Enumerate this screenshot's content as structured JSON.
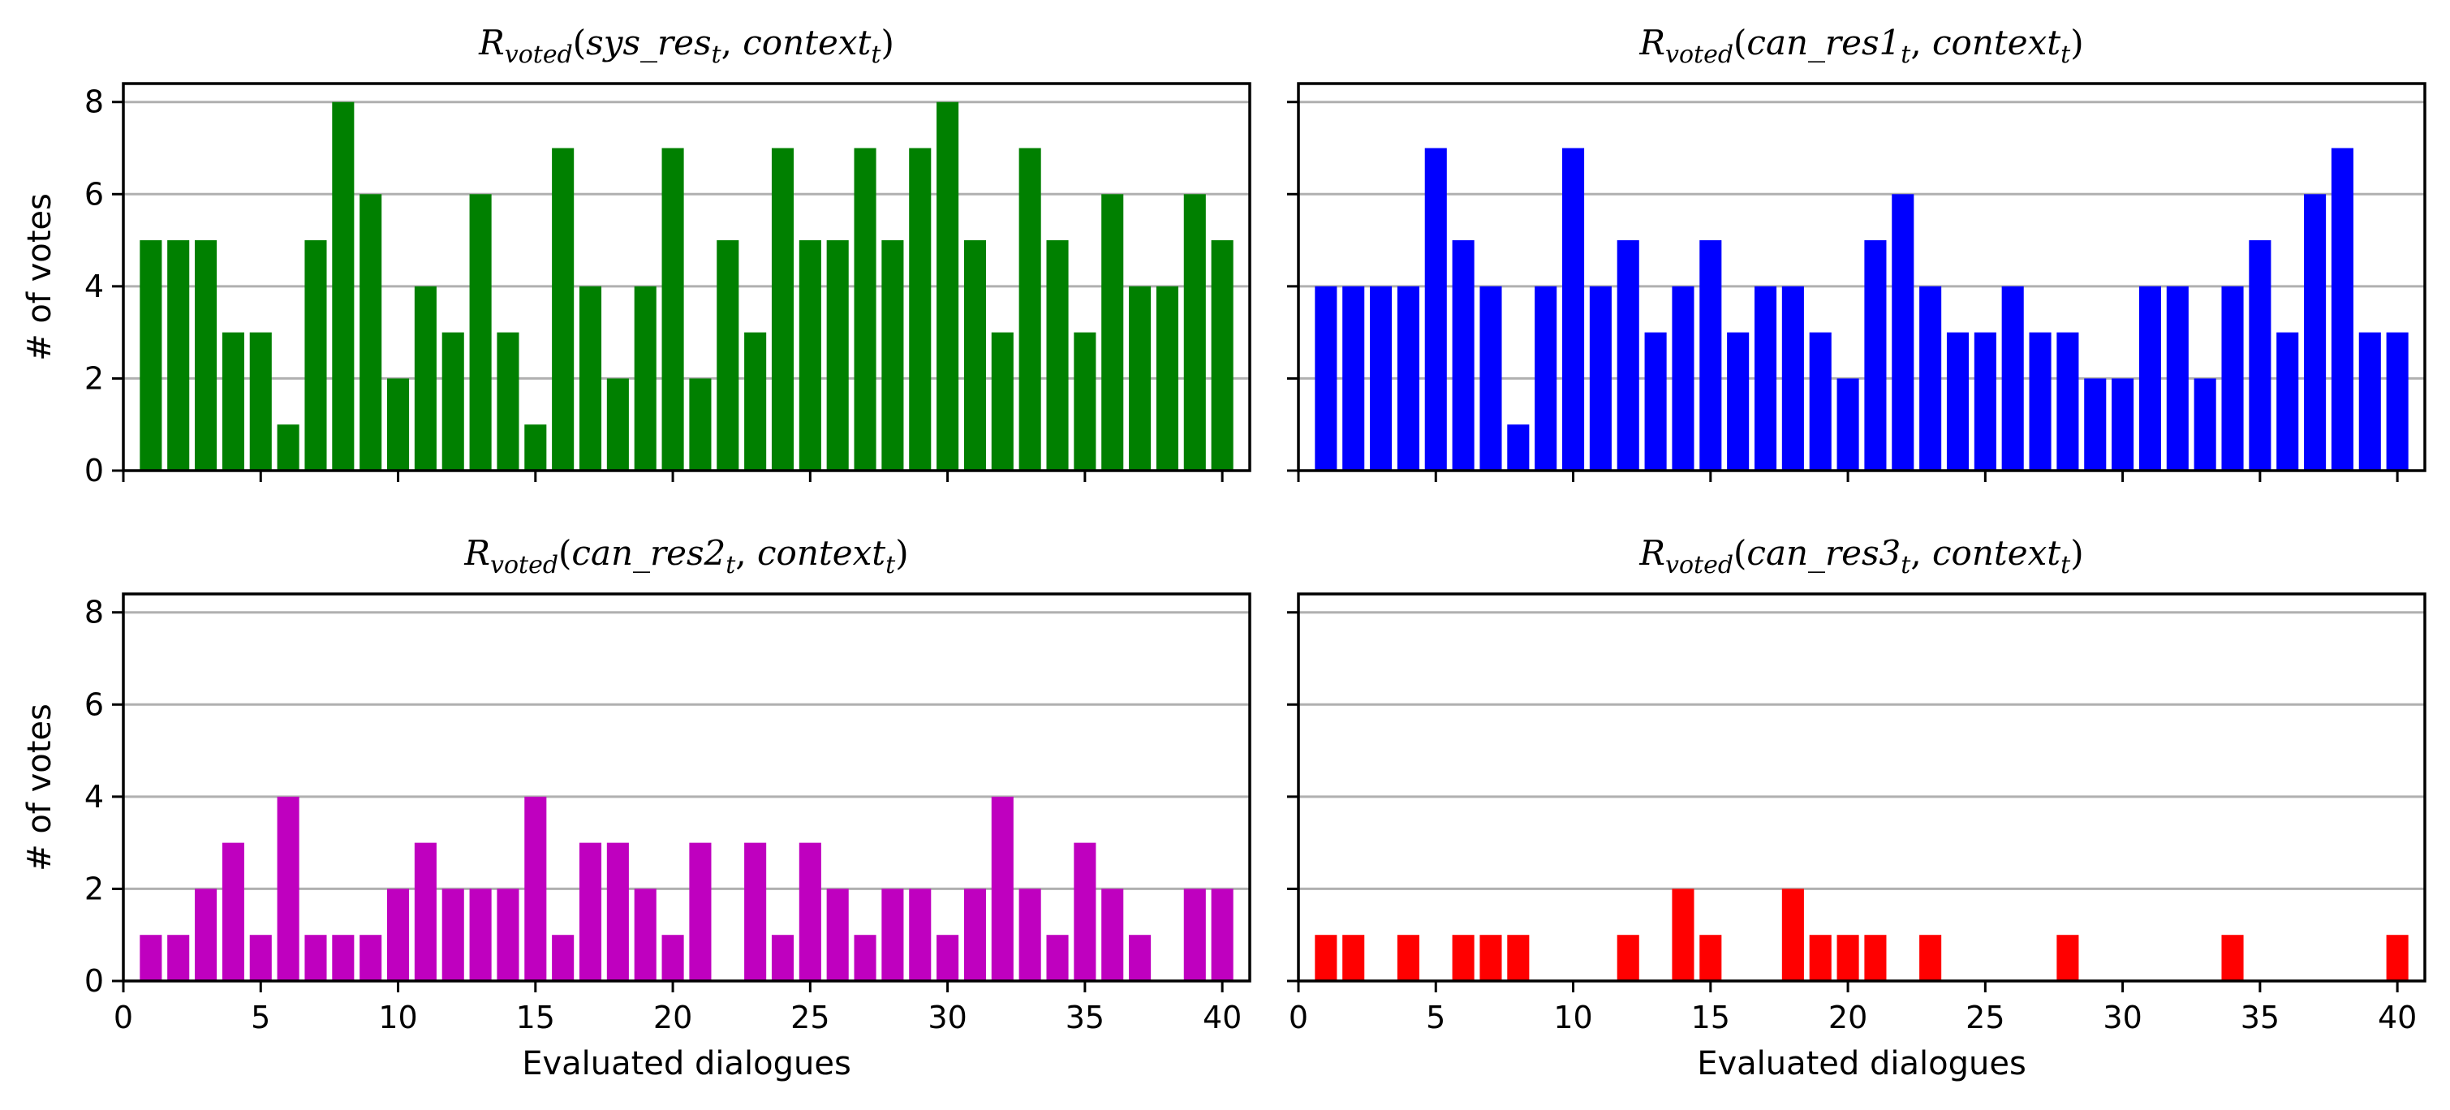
{
  "chart_data": [
    {
      "type": "bar",
      "title": "R_voted(sys_res_t, context_t)",
      "title_parts": {
        "base": "R",
        "sub": "voted",
        "open": "(",
        "arg1": "sys_res",
        "arg1_sub": "t",
        "sep": ", ",
        "arg2": "context",
        "arg2_sub": "t",
        "close": ")"
      },
      "color": "#008000",
      "xlabel": "",
      "ylabel": "# of votes",
      "x": [
        1,
        2,
        3,
        4,
        5,
        6,
        7,
        8,
        9,
        10,
        11,
        12,
        13,
        14,
        15,
        16,
        17,
        18,
        19,
        20,
        21,
        22,
        23,
        24,
        25,
        26,
        27,
        28,
        29,
        30,
        31,
        32,
        33,
        34,
        35,
        36,
        37,
        38,
        39,
        40
      ],
      "values": [
        5,
        5,
        5,
        3,
        3,
        1,
        5,
        8,
        6,
        2,
        4,
        3,
        6,
        3,
        1,
        7,
        4,
        2,
        4,
        7,
        2,
        5,
        3,
        7,
        5,
        5,
        7,
        5,
        7,
        8,
        5,
        3,
        7,
        5,
        3,
        6,
        4,
        4,
        6,
        5
      ],
      "xlim": [
        0,
        41
      ],
      "ylim": [
        0,
        8.4
      ],
      "xticks": [
        "0",
        "5",
        "10",
        "15",
        "20",
        "25",
        "30",
        "35",
        "40"
      ],
      "yticks": [
        "0",
        "2",
        "4",
        "6",
        "8"
      ],
      "show_xticklabels": false,
      "show_yticklabels": true,
      "grid": "y"
    },
    {
      "type": "bar",
      "title": "R_voted(can_res1_t, context_t)",
      "title_parts": {
        "base": "R",
        "sub": "voted",
        "open": "(",
        "arg1": "can_res1",
        "arg1_sub": "t",
        "sep": ", ",
        "arg2": "context",
        "arg2_sub": "t",
        "close": ")"
      },
      "color": "#0000ff",
      "xlabel": "",
      "ylabel": "",
      "x": [
        1,
        2,
        3,
        4,
        5,
        6,
        7,
        8,
        9,
        10,
        11,
        12,
        13,
        14,
        15,
        16,
        17,
        18,
        19,
        20,
        21,
        22,
        23,
        24,
        25,
        26,
        27,
        28,
        29,
        30,
        31,
        32,
        33,
        34,
        35,
        36,
        37,
        38,
        39,
        40
      ],
      "values": [
        4,
        4,
        4,
        4,
        7,
        5,
        4,
        1,
        4,
        7,
        4,
        5,
        3,
        4,
        5,
        3,
        4,
        4,
        3,
        2,
        5,
        6,
        4,
        3,
        3,
        4,
        3,
        3,
        2,
        2,
        4,
        4,
        2,
        4,
        5,
        3,
        6,
        7,
        3,
        3
      ],
      "xlim": [
        0,
        41
      ],
      "ylim": [
        0,
        8.4
      ],
      "xticks": [
        "0",
        "5",
        "10",
        "15",
        "20",
        "25",
        "30",
        "35",
        "40"
      ],
      "yticks": [
        "0",
        "2",
        "4",
        "6",
        "8"
      ],
      "show_xticklabels": false,
      "show_yticklabels": false,
      "grid": "y"
    },
    {
      "type": "bar",
      "title": "R_voted(can_res2_t, context_t)",
      "title_parts": {
        "base": "R",
        "sub": "voted",
        "open": "(",
        "arg1": "can_res2",
        "arg1_sub": "t",
        "sep": ", ",
        "arg2": "context",
        "arg2_sub": "t",
        "close": ")"
      },
      "color": "#bf00bf",
      "xlabel": "Evaluated dialogues",
      "ylabel": "# of votes",
      "x": [
        1,
        2,
        3,
        4,
        5,
        6,
        7,
        8,
        9,
        10,
        11,
        12,
        13,
        14,
        15,
        16,
        17,
        18,
        19,
        20,
        21,
        22,
        23,
        24,
        25,
        26,
        27,
        28,
        29,
        30,
        31,
        32,
        33,
        34,
        35,
        36,
        37,
        38,
        39,
        40
      ],
      "values": [
        1,
        1,
        2,
        3,
        1,
        4,
        1,
        1,
        1,
        2,
        3,
        2,
        2,
        2,
        4,
        1,
        3,
        3,
        2,
        1,
        3,
        0,
        3,
        1,
        3,
        2,
        1,
        2,
        2,
        1,
        2,
        4,
        2,
        1,
        3,
        2,
        1,
        0,
        2,
        2
      ],
      "xlim": [
        0,
        41
      ],
      "ylim": [
        0,
        8.4
      ],
      "xticks": [
        "0",
        "5",
        "10",
        "15",
        "20",
        "25",
        "30",
        "35",
        "40"
      ],
      "yticks": [
        "0",
        "2",
        "4",
        "6",
        "8"
      ],
      "show_xticklabels": true,
      "show_yticklabels": true,
      "grid": "y"
    },
    {
      "type": "bar",
      "title": "R_voted(can_res3_t, context_t)",
      "title_parts": {
        "base": "R",
        "sub": "voted",
        "open": "(",
        "arg1": "can_res3",
        "arg1_sub": "t",
        "sep": ", ",
        "arg2": "context",
        "arg2_sub": "t",
        "close": ")"
      },
      "color": "#ff0000",
      "xlabel": "Evaluated dialogues",
      "ylabel": "",
      "x": [
        1,
        2,
        3,
        4,
        5,
        6,
        7,
        8,
        9,
        10,
        11,
        12,
        13,
        14,
        15,
        16,
        17,
        18,
        19,
        20,
        21,
        22,
        23,
        24,
        25,
        26,
        27,
        28,
        29,
        30,
        31,
        32,
        33,
        34,
        35,
        36,
        37,
        38,
        39,
        40
      ],
      "values": [
        1,
        1,
        0,
        1,
        0,
        1,
        1,
        1,
        0,
        0,
        0,
        1,
        0,
        2,
        1,
        0,
        0,
        2,
        1,
        1,
        1,
        0,
        1,
        0,
        0,
        0,
        0,
        1,
        0,
        0,
        0,
        0,
        0,
        1,
        0,
        0,
        0,
        0,
        0,
        1
      ],
      "xlim": [
        0,
        41
      ],
      "ylim": [
        0,
        8.4
      ],
      "xticks": [
        "0",
        "5",
        "10",
        "15",
        "20",
        "25",
        "30",
        "35",
        "40"
      ],
      "yticks": [
        "0",
        "2",
        "4",
        "6",
        "8"
      ],
      "show_xticklabels": true,
      "show_yticklabels": false,
      "grid": "y"
    }
  ]
}
